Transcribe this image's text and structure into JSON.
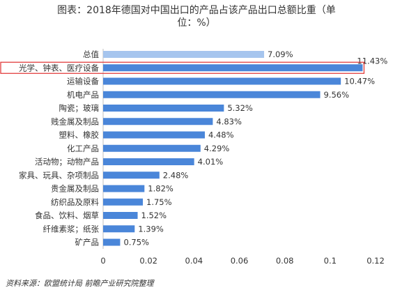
{
  "chart_data": {
    "type": "bar",
    "orientation": "horizontal",
    "title_line1": "图表：2018年德国对中国出口的产品占该产品出口总额比重（单",
    "title_line2": "位：%）",
    "categories": [
      "总值",
      "光学、钟表、医疗设备",
      "运输设备",
      "机电产品",
      "陶瓷；玻璃",
      "贱金属及制品",
      "塑料、橡胶",
      "化工产品",
      "活动物；动物产品",
      "家具、玩具、杂项制品",
      "贵金属及制品",
      "纺织品及原料",
      "食品、饮料、烟草",
      "纤维素浆；纸张",
      "矿产品"
    ],
    "values": [
      0.0709,
      0.1143,
      0.1047,
      0.0956,
      0.0532,
      0.0483,
      0.0448,
      0.0429,
      0.0401,
      0.0248,
      0.0182,
      0.0175,
      0.0152,
      0.0139,
      0.0075
    ],
    "data_labels": [
      "7.09%",
      "11.43%",
      "10.47%",
      "9.56%",
      "5.32%",
      "4.83%",
      "4.48%",
      "4.29%",
      "4.01%",
      "2.48%",
      "1.82%",
      "1.75%",
      "1.52%",
      "1.39%",
      "0.75%"
    ],
    "xlim": [
      0,
      0.12
    ],
    "x_ticks": [
      0,
      0.02,
      0.04,
      0.06,
      0.08,
      0.1,
      0.12
    ],
    "x_tick_labels": [
      "0",
      "0.02",
      "0.04",
      "0.06",
      "0.08",
      "0.1",
      "0.12"
    ],
    "xlabel": "",
    "ylabel": "",
    "grid": false,
    "legend": "none",
    "highlighted_category": "光学、钟表、医疗设备",
    "colors": {
      "bar": "#4a86d9",
      "total_bar": "#a6c5ee",
      "highlight_box": "#e03030",
      "text": "#333333",
      "axis": "#bfbfbf"
    },
    "source": "资料来源：欧盟统计局 前瞻产业研究院整理"
  }
}
